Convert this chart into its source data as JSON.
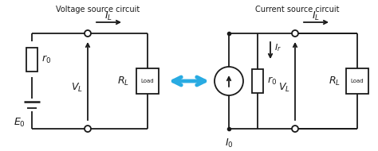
{
  "bg_color": "#ffffff",
  "line_color": "#1a1a1a",
  "arrow_color": "#29abe2",
  "title_left": "Voltage source circuit",
  "title_right": "Current source circuit",
  "fig_width": 4.74,
  "fig_height": 1.9,
  "dpi": 100
}
